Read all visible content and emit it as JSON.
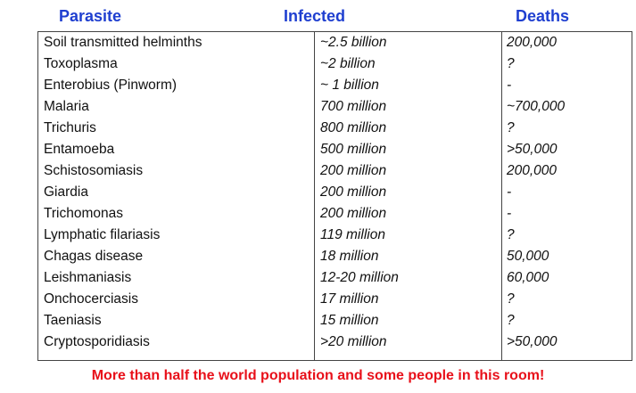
{
  "table": {
    "headers": [
      "Parasite",
      "Infected",
      "Deaths"
    ],
    "rows": [
      [
        "Soil transmitted helminths",
        "~2.5 billion",
        "200,000"
      ],
      [
        "Toxoplasma",
        "~2 billion",
        "?"
      ],
      [
        "Enterobius (Pinworm)",
        "~ 1 billion",
        "-"
      ],
      [
        "Malaria",
        "700 million",
        "~700,000"
      ],
      [
        "Trichuris",
        "800 million",
        "?"
      ],
      [
        "Entamoeba",
        "500 million",
        ">50,000"
      ],
      [
        "Schistosomiasis",
        "200 million",
        "200,000"
      ],
      [
        "Giardia",
        "200 million",
        "-"
      ],
      [
        "Trichomonas",
        "200 million",
        "-"
      ],
      [
        "Lymphatic filariasis",
        "119 million",
        "?"
      ],
      [
        "Chagas disease",
        "18 million",
        "50,000"
      ],
      [
        "Leishmaniasis",
        "12-20 million",
        "60,000"
      ],
      [
        "Onchocerciasis",
        "17 million",
        "?"
      ],
      [
        "Taeniasis",
        "15 million",
        "?"
      ],
      [
        "Cryptosporidiasis",
        ">20 million",
        ">50,000"
      ]
    ]
  },
  "footer": "More than half the world population and some people in this room!"
}
